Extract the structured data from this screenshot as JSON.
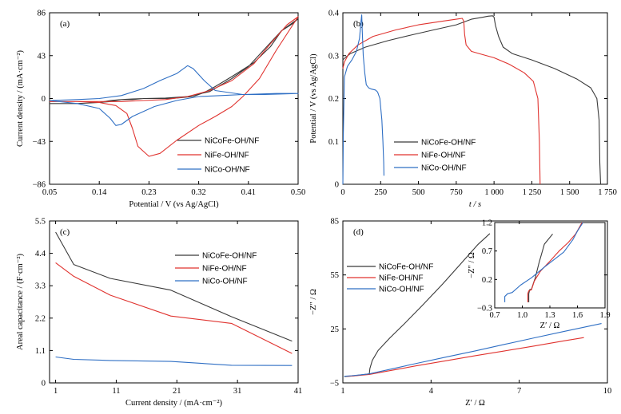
{
  "colors": {
    "NiCoFe": "#3a3a3a",
    "NiFe": "#e0332f",
    "NiCo": "#2f6fc4"
  },
  "chart_data": [
    {
      "type": "line",
      "panel": "(a)",
      "xlabel": "Potential / V (vs Ag/AgCl)",
      "ylabel": "Current density / (mA·cm⁻²)",
      "xlim": [
        0.05,
        0.5
      ],
      "ylim": [
        -86,
        86
      ],
      "xticks": [
        0.05,
        0.14,
        0.23,
        0.32,
        0.41,
        0.5
      ],
      "xtick_labels": [
        "0.05",
        "0.14",
        "0.23",
        "0.32",
        "0.41",
        "0.50"
      ],
      "yticks": [
        -86,
        -43,
        0,
        43,
        86
      ],
      "ytick_labels": [
        "−86",
        "−43",
        "0",
        "43",
        "86"
      ],
      "legend_position": "lower-right",
      "series": [
        {
          "name": "NiCoFe-OH/NF",
          "color_key": "NiCoFe",
          "x": [
            0.05,
            0.1,
            0.14,
            0.16,
            0.18,
            0.2,
            0.22,
            0.26,
            0.3,
            0.34,
            0.38,
            0.41,
            0.44,
            0.47,
            0.5,
            0.49,
            0.47,
            0.45,
            0.42,
            0.38,
            0.35,
            0.33,
            0.31,
            0.29,
            0.27,
            0.25,
            0.22,
            0.2,
            0.18,
            0.17,
            0.16,
            0.14,
            0.1,
            0.05
          ],
          "y": [
            -5,
            -5,
            -4,
            -2,
            -1,
            -0.5,
            0,
            0.5,
            2,
            7,
            20,
            32,
            50,
            68,
            80,
            75,
            68,
            52,
            36,
            22,
            12,
            6,
            2,
            1,
            0,
            0,
            0,
            -1,
            -1,
            -2,
            -3,
            -4,
            -5,
            -5
          ]
        },
        {
          "name": "NiFe-OH/NF",
          "color_key": "NiFe",
          "x": [
            0.05,
            0.1,
            0.14,
            0.17,
            0.19,
            0.2,
            0.21,
            0.23,
            0.25,
            0.28,
            0.32,
            0.35,
            0.38,
            0.4,
            0.43,
            0.46,
            0.5,
            0.48,
            0.45,
            0.42,
            0.38,
            0.34,
            0.3,
            0.26,
            0.22,
            0.18,
            0.14,
            0.1,
            0.05
          ],
          "y": [
            -3,
            -3,
            -4,
            -7,
            -15,
            -30,
            -48,
            -58,
            -55,
            -42,
            -27,
            -18,
            -8,
            2,
            20,
            48,
            82,
            74,
            55,
            35,
            18,
            8,
            2,
            -1,
            -2,
            -3,
            -3,
            -3,
            -3
          ]
        },
        {
          "name": "NiCo-OH/NF",
          "color_key": "NiCo",
          "x": [
            0.05,
            0.1,
            0.14,
            0.16,
            0.17,
            0.18,
            0.2,
            0.24,
            0.28,
            0.32,
            0.36,
            0.4,
            0.44,
            0.5,
            0.46,
            0.4,
            0.35,
            0.33,
            0.31,
            0.3,
            0.28,
            0.25,
            0.22,
            0.18,
            0.14,
            0.1,
            0.05
          ],
          "y": [
            -2,
            -5,
            -10,
            -20,
            -27,
            -26,
            -18,
            -8,
            -2,
            2,
            3,
            4,
            4,
            5,
            5,
            4,
            8,
            18,
            30,
            33,
            25,
            18,
            10,
            3,
            0,
            -1,
            -2
          ]
        }
      ]
    },
    {
      "type": "line",
      "panel": "(b)",
      "xlabel": "t / s",
      "ylabel": "Potential / V (vs Ag/AgCl)",
      "xlim": [
        0,
        1750
      ],
      "ylim": [
        0,
        0.4
      ],
      "xticks": [
        0,
        250,
        500,
        750,
        1000,
        1250,
        1500,
        1750
      ],
      "xtick_labels": [
        "0",
        "250",
        "500",
        "750",
        "1 000",
        "1 250",
        "1 500",
        "1 750"
      ],
      "yticks": [
        0,
        0.1,
        0.2,
        0.3,
        0.4
      ],
      "ytick_labels": [
        "0",
        "0.1",
        "0.2",
        "0.3",
        "0.4"
      ],
      "legend_position": "lower-right",
      "series": [
        {
          "name": "NiCoFe-OH/NF",
          "color_key": "NiCoFe",
          "x": [
            0,
            15,
            50,
            150,
            300,
            450,
            600,
            750,
            850,
            930,
            960,
            990,
            1000,
            1010,
            1030,
            1060,
            1120,
            1250,
            1400,
            1550,
            1640,
            1680,
            1695,
            1700,
            1705
          ],
          "y": [
            0.29,
            0.295,
            0.305,
            0.32,
            0.335,
            0.348,
            0.36,
            0.372,
            0.385,
            0.39,
            0.392,
            0.393,
            0.39,
            0.37,
            0.345,
            0.32,
            0.305,
            0.29,
            0.27,
            0.245,
            0.225,
            0.2,
            0.15,
            0.05,
            0
          ]
        },
        {
          "name": "NiFe-OH/NF",
          "color_key": "NiFe",
          "x": [
            0,
            10,
            40,
            100,
            200,
            350,
            500,
            650,
            750,
            790,
            800,
            805,
            815,
            850,
            900,
            1000,
            1100,
            1200,
            1260,
            1290,
            1300,
            1305
          ],
          "y": [
            0.27,
            0.285,
            0.305,
            0.325,
            0.345,
            0.36,
            0.372,
            0.38,
            0.385,
            0.387,
            0.38,
            0.35,
            0.325,
            0.31,
            0.305,
            0.295,
            0.28,
            0.26,
            0.24,
            0.2,
            0.1,
            0
          ]
        },
        {
          "name": "NiCo-OH/NF",
          "color_key": "NiCo",
          "x": [
            0,
            3,
            10,
            30,
            60,
            90,
            110,
            120,
            125,
            128,
            135,
            145,
            155,
            170,
            190,
            215,
            230,
            245,
            258,
            265,
            270,
            272
          ],
          "y": [
            0.0,
            0.12,
            0.25,
            0.275,
            0.29,
            0.31,
            0.34,
            0.38,
            0.395,
            0.36,
            0.3,
            0.26,
            0.232,
            0.225,
            0.222,
            0.22,
            0.215,
            0.2,
            0.15,
            0.1,
            0.05,
            0.02
          ]
        }
      ]
    },
    {
      "type": "line",
      "panel": "(c)",
      "xlabel": "Current density / (mA·cm⁻²)",
      "ylabel": "Areal capacitance / (F·cm⁻²)",
      "xlim": [
        0,
        41
      ],
      "ylim": [
        0,
        5.5
      ],
      "xticks": [
        1,
        11,
        21,
        31,
        41
      ],
      "xtick_labels": [
        "1",
        "11",
        "21",
        "31",
        "41"
      ],
      "yticks": [
        0,
        1.1,
        2.2,
        3.3,
        4.4,
        5.5
      ],
      "ytick_labels": [
        "0",
        "1.1",
        "2.2",
        "3.3",
        "4.4",
        "5.5"
      ],
      "legend_position": "top-right",
      "series": [
        {
          "name": "NiCoFe-OH/NF",
          "color_key": "NiCoFe",
          "x": [
            1,
            4,
            10,
            20,
            30,
            40
          ],
          "y": [
            5.12,
            4.02,
            3.55,
            3.15,
            2.25,
            1.42
          ]
        },
        {
          "name": "NiFe-OH/NF",
          "color_key": "NiFe",
          "x": [
            1,
            4,
            10,
            20,
            30,
            40
          ],
          "y": [
            4.08,
            3.62,
            2.98,
            2.27,
            2.02,
            1.0
          ]
        },
        {
          "name": "NiCo-OH/NF",
          "color_key": "NiCo",
          "x": [
            1,
            4,
            10,
            20,
            30,
            40
          ],
          "y": [
            0.88,
            0.8,
            0.76,
            0.73,
            0.6,
            0.59
          ]
        }
      ]
    },
    {
      "type": "line",
      "panel": "(d)",
      "xlabel": "Z′ / Ω",
      "ylabel": "−Z″ / Ω",
      "xlim": [
        1,
        10
      ],
      "ylim": [
        -5,
        85
      ],
      "xticks": [
        1,
        4,
        7,
        10
      ],
      "xtick_labels": [
        "1",
        "4",
        "7",
        "10"
      ],
      "yticks": [
        -5,
        25,
        55,
        85
      ],
      "ytick_labels": [
        "−5",
        "25",
        "55",
        "85"
      ],
      "legend_position": "top-left",
      "series": [
        {
          "name": "NiCoFe-OH/NF",
          "color_key": "NiCoFe",
          "x": [
            1.05,
            1.3,
            1.6,
            1.9,
            1.92,
            2.0,
            2.2,
            2.6,
            3.1,
            3.7,
            4.4,
            5.0,
            5.6,
            6.0
          ],
          "y": [
            -1.5,
            -1.2,
            -0.6,
            0.0,
            3.0,
            7.5,
            13,
            20,
            28,
            38,
            50,
            61,
            72,
            78
          ]
        },
        {
          "name": "NiFe-OH/NF",
          "color_key": "NiFe",
          "x": [
            1.1,
            1.3,
            1.6,
            1.9,
            2.5,
            3.5,
            4.5,
            5.5,
            6.5,
            7.5,
            8.5,
            9.2
          ],
          "y": [
            -1.3,
            -1.2,
            -0.8,
            -0.3,
            1.5,
            4.5,
            7.3,
            10.1,
            12.8,
            15.5,
            18.3,
            20.2
          ]
        },
        {
          "name": "NiCo-OH/NF",
          "color_key": "NiCo",
          "x": [
            1.05,
            1.3,
            1.6,
            1.9,
            2.5,
            3.5,
            4.5,
            5.5,
            6.5,
            7.5,
            8.5,
            9.8
          ],
          "y": [
            -1.3,
            -1.0,
            -0.5,
            0.0,
            2.2,
            5.8,
            9.3,
            12.8,
            16.4,
            20.0,
            23.5,
            28.0
          ]
        }
      ],
      "inset": {
        "xlabel": "Z′ / Ω",
        "ylabel": "−Z″ / Ω",
        "xlim": [
          0.7,
          1.9
        ],
        "ylim": [
          -0.3,
          1.2
        ],
        "xticks": [
          0.7,
          1.0,
          1.3,
          1.6,
          1.9
        ],
        "xtick_labels": [
          "0.7",
          "1.0",
          "1.3",
          "1.6",
          "1.9"
        ],
        "yticks": [
          -0.3,
          0.2,
          0.7,
          1.2
        ],
        "ytick_labels": [
          "−0.3",
          "0.2",
          "0.7",
          "1.2"
        ],
        "series": [
          {
            "color_key": "NiCoFe",
            "x": [
              1.07,
              1.07,
              1.08,
              1.1,
              1.13,
              1.14,
              1.18,
              1.24,
              1.33
            ],
            "y": [
              -0.2,
              -0.05,
              0.02,
              0.03,
              0.18,
              0.22,
              0.48,
              0.82,
              1.0
            ]
          },
          {
            "color_key": "NiFe",
            "x": [
              1.06,
              1.06,
              1.07,
              1.1,
              1.13,
              1.16,
              1.2,
              1.3,
              1.4,
              1.5,
              1.58,
              1.65
            ],
            "y": [
              -0.2,
              -0.05,
              0.0,
              0.02,
              0.17,
              0.25,
              0.35,
              0.52,
              0.7,
              0.85,
              1.0,
              1.2
            ]
          },
          {
            "color_key": "NiCo",
            "x": [
              0.81,
              0.81,
              0.84,
              0.89,
              0.98,
              1.1,
              1.25,
              1.45,
              1.55,
              1.6,
              1.66
            ],
            "y": [
              -0.2,
              -0.1,
              -0.05,
              -0.03,
              0.1,
              0.23,
              0.43,
              0.68,
              0.9,
              1.05,
              1.2
            ]
          }
        ]
      }
    }
  ]
}
